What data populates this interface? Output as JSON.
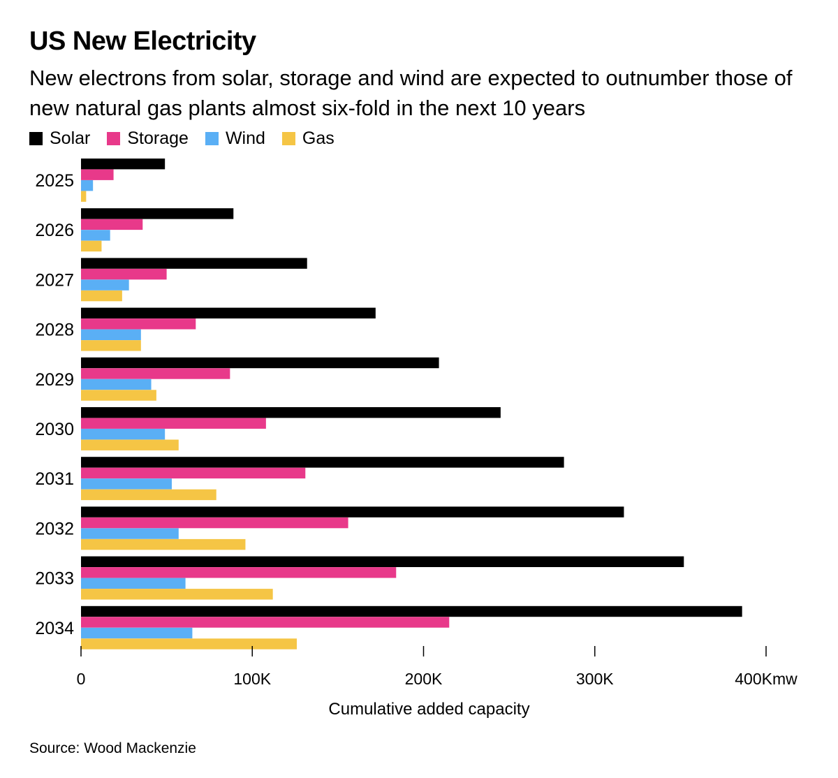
{
  "header": {
    "title": "US New Electricity",
    "subtitle": "New electrons from solar, storage and wind are expected to outnumber those of new natural gas plants almost six-fold in the next 10 years"
  },
  "legend": {
    "items": [
      {
        "label": "Solar",
        "color": "#000000"
      },
      {
        "label": "Storage",
        "color": "#e8398a"
      },
      {
        "label": "Wind",
        "color": "#5aaff5"
      },
      {
        "label": "Gas",
        "color": "#f5c545"
      }
    ]
  },
  "footer": {
    "source": "Source: Wood Mackenzie"
  },
  "chart_data": {
    "type": "bar",
    "orientation": "horizontal",
    "title": "US New Electricity",
    "subtitle": "New electrons from solar, storage and wind are expected to outnumber those of new natural gas plants almost six-fold in the next 10 years",
    "xlabel": "Cumulative added capacity",
    "ylabel": "",
    "xlim": [
      0,
      400000
    ],
    "xticks": [
      0,
      100000,
      200000,
      300000,
      400000
    ],
    "xtick_labels": [
      "0",
      "100K",
      "200K",
      "300K",
      "400Kmw"
    ],
    "categories": [
      "2025",
      "2026",
      "2027",
      "2028",
      "2029",
      "2030",
      "2031",
      "2032",
      "2033",
      "2034"
    ],
    "series": [
      {
        "name": "Solar",
        "color": "#000000",
        "values": [
          49000,
          89000,
          132000,
          172000,
          209000,
          245000,
          282000,
          317000,
          352000,
          386000
        ]
      },
      {
        "name": "Storage",
        "color": "#e8398a",
        "values": [
          19000,
          36000,
          50000,
          67000,
          87000,
          108000,
          131000,
          156000,
          184000,
          215000
        ]
      },
      {
        "name": "Wind",
        "color": "#5aaff5",
        "values": [
          7000,
          17000,
          28000,
          35000,
          41000,
          49000,
          53000,
          57000,
          61000,
          65000
        ]
      },
      {
        "name": "Gas",
        "color": "#f5c545",
        "values": [
          3000,
          12000,
          24000,
          35000,
          44000,
          57000,
          79000,
          96000,
          112000,
          126000
        ]
      }
    ],
    "grid": false,
    "legend_position": "top-left"
  }
}
